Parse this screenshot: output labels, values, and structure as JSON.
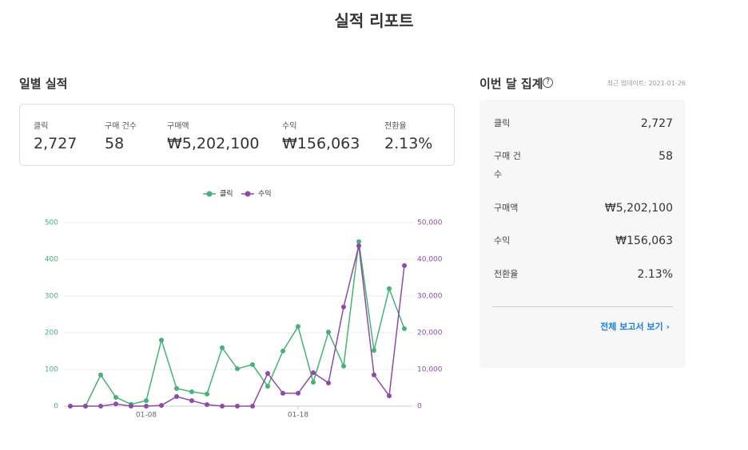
{
  "header": {
    "title": "실적 리포트"
  },
  "daily": {
    "title": "일별 실적",
    "summary": [
      {
        "label": "클릭",
        "value": "2,727"
      },
      {
        "label": "구매 건수",
        "value": "58"
      },
      {
        "label": "구매액",
        "value": "₩5,202,100"
      },
      {
        "label": "수익",
        "value": "₩156,063"
      },
      {
        "label": "전환율",
        "value": "2.13%"
      }
    ]
  },
  "chart_data": {
    "type": "line",
    "categories": [
      null,
      null,
      null,
      null,
      null,
      "01-08",
      null,
      null,
      null,
      null,
      null,
      null,
      null,
      null,
      null,
      "01-18",
      null,
      null,
      null,
      null,
      null,
      null,
      null
    ],
    "series": [
      {
        "name": "클릭",
        "color": "#46b275",
        "axis": "y",
        "values": [
          0,
          0,
          85,
          24,
          5,
          15,
          180,
          48,
          39,
          33,
          159,
          102,
          113,
          54,
          150,
          217,
          65,
          202,
          109,
          448,
          152,
          320,
          211
        ]
      },
      {
        "name": "수익",
        "color": "#8e4aa8",
        "axis": "y2",
        "values": [
          0,
          0,
          0,
          600,
          0,
          0,
          200,
          2600,
          1500,
          400,
          0,
          0,
          0,
          8900,
          3500,
          3500,
          9100,
          6300,
          27000,
          43700,
          8500,
          2800,
          38300
        ]
      }
    ],
    "ylim": [
      0,
      500
    ],
    "yticks": [
      0,
      100,
      200,
      300,
      400,
      500
    ],
    "y2lim": [
      0,
      50000
    ],
    "y2ticks": [
      0,
      {
        "value": 10000,
        "label": "10,000"
      },
      {
        "value": 20000,
        "label": "20,000"
      },
      {
        "value": 30000,
        "label": "30,000"
      },
      {
        "value": 40000,
        "label": "40,000"
      },
      {
        "value": 50000,
        "label": "50,000"
      }
    ],
    "grid": true,
    "legend": "top"
  },
  "monthly": {
    "title": "이번 달 집계",
    "updated": "최근 업데이트: 2021-01-26",
    "rows": [
      {
        "label": "클릭",
        "value": "2,727"
      },
      {
        "label": "구매 건수",
        "value": "58"
      },
      {
        "label": "구매액",
        "value": "₩5,202,100"
      },
      {
        "label": "수익",
        "value": "₩156,063"
      },
      {
        "label": "전환율",
        "value": "2.13%"
      }
    ],
    "link": "전체 보고서 보기"
  }
}
